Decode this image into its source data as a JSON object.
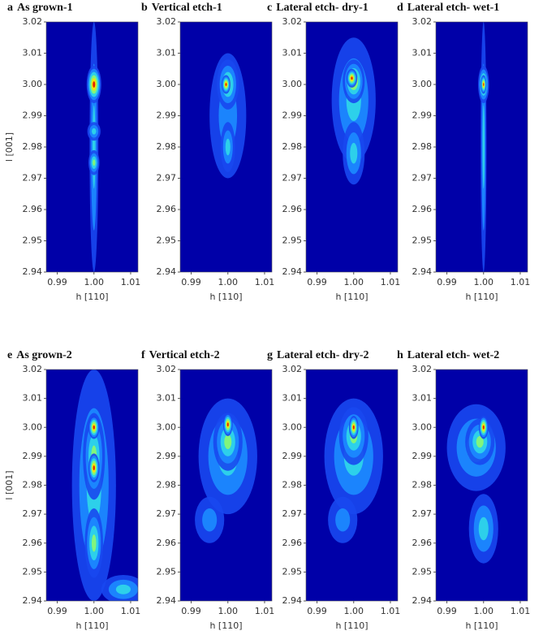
{
  "chart_data": [
    {
      "type": "contour",
      "label": "a",
      "title": "As grown-1",
      "xlabel": "h [110]",
      "ylabel": "l [001]",
      "xlim": [
        0.987,
        1.012
      ],
      "xticks": [
        0.99,
        {
          "value": 1.0,
          "label": "1.00"
        },
        1.01
      ],
      "ylim": [
        2.94,
        3.02
      ],
      "yticks": [
        2.94,
        2.95,
        2.96,
        2.97,
        2.98,
        2.99,
        {
          "value": 3.0,
          "label": "3.00"
        },
        3.01,
        3.02
      ]
    },
    {
      "type": "contour",
      "label": "b",
      "title": "Vertical etch-1",
      "xlabel": "h [110]",
      "xlim": [
        0.987,
        1.012
      ],
      "xticks": [
        0.99,
        {
          "value": 1.0,
          "label": "1.00"
        },
        1.01
      ],
      "ylim": [
        2.94,
        3.02
      ],
      "yticks": [
        2.94,
        2.95,
        2.96,
        2.97,
        2.98,
        2.99,
        {
          "value": 3.0,
          "label": "3.00"
        },
        3.01,
        3.02
      ]
    },
    {
      "type": "contour",
      "label": "c",
      "title": "Lateral etch- dry-1",
      "xlabel": "h [110]",
      "xlim": [
        0.987,
        1.012
      ],
      "xticks": [
        0.99,
        {
          "value": 1.0,
          "label": "1.00"
        },
        1.01
      ],
      "ylim": [
        2.94,
        3.02
      ],
      "yticks": [
        2.94,
        2.95,
        2.96,
        2.97,
        2.98,
        2.99,
        {
          "value": 3.0,
          "label": "3.00"
        },
        3.01,
        3.02
      ]
    },
    {
      "type": "contour",
      "label": "d",
      "title": "Lateral etch- wet-1",
      "xlabel": "h [110]",
      "xlim": [
        0.987,
        1.012
      ],
      "xticks": [
        0.99,
        {
          "value": 1.0,
          "label": "1.00"
        },
        1.01
      ],
      "ylim": [
        2.94,
        3.02
      ],
      "yticks": [
        2.94,
        2.95,
        2.96,
        2.97,
        2.98,
        2.99,
        {
          "value": 3.0,
          "label": "3.00"
        },
        3.01,
        3.02
      ]
    },
    {
      "type": "contour",
      "label": "e",
      "title": "As grown-2",
      "xlabel": "h [110]",
      "ylabel": "l [001]",
      "xlim": [
        0.987,
        1.012
      ],
      "xticks": [
        0.99,
        {
          "value": 1.0,
          "label": "1.00"
        },
        1.01
      ],
      "ylim": [
        2.94,
        3.02
      ],
      "yticks": [
        2.94,
        2.95,
        2.96,
        2.97,
        2.98,
        2.99,
        {
          "value": 3.0,
          "label": "3.00"
        },
        3.01,
        3.02
      ]
    },
    {
      "type": "contour",
      "label": "f",
      "title": "Vertical etch-2",
      "xlabel": "h [110]",
      "xlim": [
        0.987,
        1.012
      ],
      "xticks": [
        0.99,
        {
          "value": 1.0,
          "label": "1.00"
        },
        1.01
      ],
      "ylim": [
        2.94,
        3.02
      ],
      "yticks": [
        2.94,
        2.95,
        2.96,
        2.97,
        2.98,
        2.99,
        {
          "value": 3.0,
          "label": "3.00"
        },
        3.01,
        3.02
      ]
    },
    {
      "type": "contour",
      "label": "g",
      "title": "Lateral etch- dry-2",
      "xlabel": "h [110]",
      "xlim": [
        0.987,
        1.012
      ],
      "xticks": [
        0.99,
        {
          "value": 1.0,
          "label": "1.00"
        },
        1.01
      ],
      "ylim": [
        2.94,
        3.02
      ],
      "yticks": [
        2.94,
        2.95,
        2.96,
        2.97,
        2.98,
        2.99,
        {
          "value": 3.0,
          "label": "3.00"
        },
        3.01,
        3.02
      ]
    },
    {
      "type": "contour",
      "label": "h",
      "title": "Lateral etch- wet-2",
      "xlabel": "h [110]",
      "xlim": [
        0.987,
        1.012
      ],
      "xticks": [
        0.99,
        {
          "value": 1.0,
          "label": "1.00"
        },
        1.01
      ],
      "ylim": [
        2.94,
        3.02
      ],
      "yticks": [
        2.94,
        2.95,
        2.96,
        2.97,
        2.98,
        2.99,
        {
          "value": 3.0,
          "label": "3.00"
        },
        3.01,
        3.02
      ]
    }
  ]
}
